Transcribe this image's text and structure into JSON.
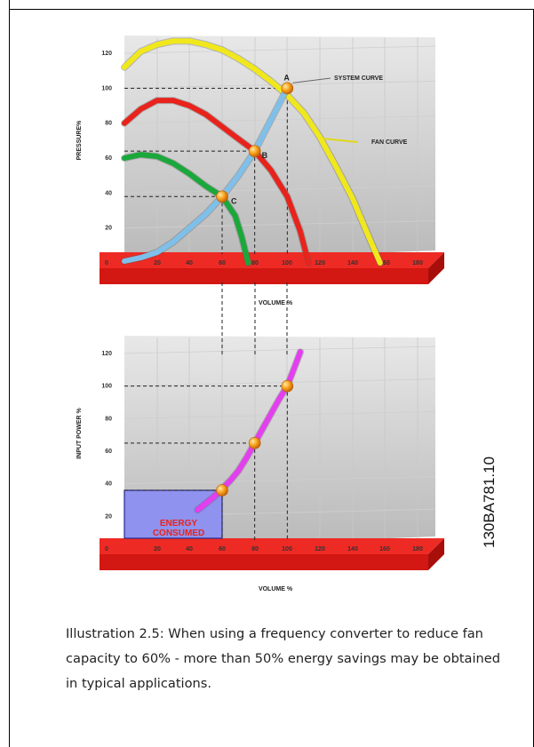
{
  "chart_data": [
    {
      "type": "line",
      "ylabel": "PRESSURE%",
      "xlabel": "VOLUME %",
      "xlim": [
        0,
        180
      ],
      "ylim": [
        0,
        120
      ],
      "xticks": [
        "0",
        "20",
        "40",
        "60",
        "80",
        "100",
        "120",
        "140",
        "160",
        "180"
      ],
      "yticks": [
        "0",
        "20",
        "40",
        "60",
        "80",
        "100",
        "120"
      ],
      "series": [
        {
          "name": "FAN CURVE",
          "color": "#f0e81c",
          "x": [
            0,
            10,
            20,
            30,
            40,
            50,
            60,
            70,
            80,
            90,
            100,
            110,
            120,
            130,
            140,
            150,
            157
          ],
          "y": [
            112,
            121,
            125,
            127,
            127,
            125,
            122,
            117,
            111,
            104,
            96,
            86,
            72,
            55,
            37,
            15,
            0
          ]
        },
        {
          "name": "",
          "color": "#e8231c",
          "x": [
            0,
            10,
            20,
            30,
            40,
            50,
            60,
            70,
            80,
            90,
            100,
            108,
            113
          ],
          "y": [
            80,
            88,
            93,
            93,
            90,
            85,
            78,
            71,
            64,
            53,
            38,
            18,
            0
          ]
        },
        {
          "name": "",
          "color": "#1aa83a",
          "x": [
            0,
            10,
            20,
            30,
            40,
            50,
            60,
            68,
            72,
            76
          ],
          "y": [
            60,
            62,
            61,
            57,
            51,
            44,
            38,
            27,
            15,
            0
          ]
        },
        {
          "name": "SYSTEM CURVE",
          "color": "#7ec0ea",
          "x": [
            0,
            10,
            20,
            30,
            40,
            50,
            60,
            70,
            80,
            90,
            100
          ],
          "y": [
            1,
            3,
            6,
            12,
            20,
            28,
            38,
            50,
            64,
            82,
            100
          ]
        }
      ],
      "points": [
        {
          "label": "A",
          "x": 100,
          "y": 100
        },
        {
          "label": "B",
          "x": 80,
          "y": 64
        },
        {
          "label": "C",
          "x": 60,
          "y": 38
        }
      ],
      "annotations": [
        "SYSTEM CURVE",
        "FAN CURVE"
      ]
    },
    {
      "type": "line",
      "ylabel": "INPUT POWER %",
      "xlabel": "VOLUME %",
      "xlim": [
        0,
        180
      ],
      "ylim": [
        0,
        120
      ],
      "xticks": [
        "0",
        "20",
        "40",
        "60",
        "80",
        "100",
        "120",
        "140",
        "160",
        "180"
      ],
      "yticks": [
        "0",
        "20",
        "40",
        "60",
        "80",
        "100",
        "120"
      ],
      "series": [
        {
          "name": "",
          "color": "#e43ef0",
          "x": [
            45,
            50,
            55,
            60,
            65,
            70,
            75,
            80,
            85,
            90,
            95,
            100,
            105,
            108
          ],
          "y": [
            24,
            28,
            32,
            37,
            42,
            48,
            56,
            65,
            74,
            83,
            92,
            100,
            113,
            121
          ]
        }
      ],
      "points": [
        {
          "label": "",
          "x": 100,
          "y": 100
        },
        {
          "label": "",
          "x": 80,
          "y": 65
        },
        {
          "label": "",
          "x": 60,
          "y": 36
        }
      ],
      "area": {
        "label_line1": "ENERGY",
        "label_line2": "CONSUMED",
        "x": 60,
        "y": 36,
        "color": "#8f92ee"
      }
    }
  ],
  "drawing_code": "130BA781.10",
  "caption": "Illustration 2.5: When using a frequency converter to reduce fan capacity to 60% - more than 50% energy savings may be obtained in typical applications."
}
